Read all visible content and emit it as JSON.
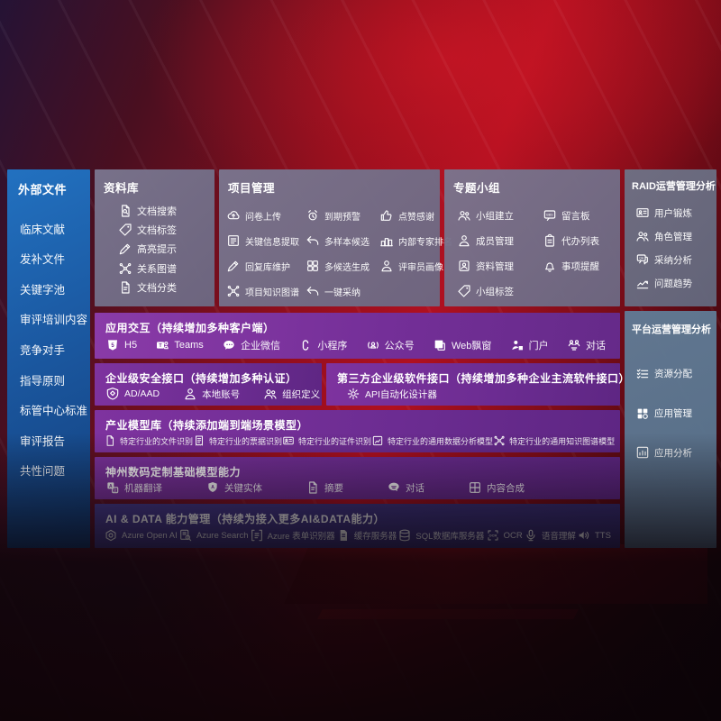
{
  "sidebar": {
    "title": "外部文件",
    "items": [
      {
        "label": "临床文献"
      },
      {
        "label": "发补文件"
      },
      {
        "label": "关键字池"
      },
      {
        "label": "审评培训内容"
      },
      {
        "label": "竞争对手"
      },
      {
        "label": "指导原则"
      },
      {
        "label": "标管中心标准"
      },
      {
        "label": "审评报告"
      },
      {
        "label": "共性问题"
      }
    ]
  },
  "panels": {
    "library": {
      "title": "资料库",
      "items": [
        {
          "label": "文档搜索",
          "icon": "doc-search-icon"
        },
        {
          "label": "文档标签",
          "icon": "doc-tag-icon"
        },
        {
          "label": "高亮提示",
          "icon": "highlight-pen-icon"
        },
        {
          "label": "关系图谱",
          "icon": "relation-graph-icon"
        },
        {
          "label": "文档分类",
          "icon": "doc-category-icon"
        }
      ]
    },
    "project": {
      "title": "项目管理",
      "items": [
        {
          "label": "问卷上传",
          "icon": "upload-cloud-icon"
        },
        {
          "label": "到期预警",
          "icon": "alarm-icon"
        },
        {
          "label": "点赞感谢",
          "icon": "thumbs-up-icon"
        },
        {
          "label": "关键信息提取",
          "icon": "doc-extract-icon"
        },
        {
          "label": "多样本候选",
          "icon": "reply-arrow-icon"
        },
        {
          "label": "内部专家排名",
          "icon": "ranking-icon"
        },
        {
          "label": "回复库维护",
          "icon": "edit-pen-icon"
        },
        {
          "label": "多候选生成",
          "icon": "multi-generate-icon"
        },
        {
          "label": "评审员画像",
          "icon": "reviewer-person-icon"
        },
        {
          "label": "项目知识图谱",
          "icon": "knowledge-graph-icon"
        },
        {
          "label": "一键采纳",
          "icon": "adopt-arrow-icon"
        }
      ]
    },
    "groups": {
      "title": "专题小组",
      "items": [
        {
          "label": "小组建立",
          "icon": "group-people-icon"
        },
        {
          "label": "留言板",
          "icon": "message-board-icon"
        },
        {
          "label": "成员管理",
          "icon": "member-person-icon"
        },
        {
          "label": "代办列表",
          "icon": "todo-clipboard-icon"
        },
        {
          "label": "资料管理",
          "icon": "data-album-icon"
        },
        {
          "label": "事项提醒",
          "icon": "reminder-bell-icon"
        },
        {
          "label": "小组标签",
          "icon": "group-tag-icon"
        }
      ]
    },
    "raid": {
      "title": "RAID运营管理分析",
      "items": [
        {
          "label": "用户锻炼",
          "icon": "user-card-icon"
        },
        {
          "label": "角色管理",
          "icon": "role-people-icon"
        },
        {
          "label": "采纳分析",
          "icon": "adoption-chat-icon"
        },
        {
          "label": "问题趋势",
          "icon": "trend-chart-icon"
        }
      ]
    },
    "platform": {
      "title": "平台运营管理分析",
      "items": [
        {
          "label": "资源分配",
          "icon": "resource-list-icon"
        },
        {
          "label": "应用管理",
          "icon": "app-grid-icon"
        },
        {
          "label": "应用分析",
          "icon": "app-analysis-icon"
        }
      ]
    }
  },
  "rows": {
    "interaction": {
      "title": "应用交互（持续增加多种客户端）",
      "items": [
        {
          "label": "H5",
          "icon": "h5-icon"
        },
        {
          "label": "Teams",
          "icon": "teams-icon"
        },
        {
          "label": "企业微信",
          "icon": "wechat-work-icon"
        },
        {
          "label": "小程序",
          "icon": "miniprogram-icon"
        },
        {
          "label": "公众号",
          "icon": "official-account-icon"
        },
        {
          "label": "Web飘窗",
          "icon": "web-popup-icon"
        },
        {
          "label": "门户",
          "icon": "portal-icon"
        },
        {
          "label": "对话",
          "icon": "dialog-icon"
        }
      ]
    },
    "security": {
      "title": "企业级安全接口（持续增加多种认证）",
      "items": [
        {
          "label": "AD/AAD",
          "icon": "ad-shield-icon"
        },
        {
          "label": "本地账号",
          "icon": "local-account-icon"
        },
        {
          "label": "组织定义",
          "icon": "org-define-icon"
        }
      ]
    },
    "thirdparty": {
      "title": "第三方企业级软件接口（持续增加多种企业主流软件接口）",
      "items": [
        {
          "label": "API自动化设计器",
          "icon": "api-designer-icon"
        }
      ]
    },
    "industry": {
      "title": "产业模型库（持续添加端到端场景模型）",
      "items": [
        {
          "label": "特定行业的文件识别",
          "icon": "file-recognition-icon"
        },
        {
          "label": "特定行业的票据识别",
          "icon": "invoice-recognition-icon"
        },
        {
          "label": "特定行业的证件识别",
          "icon": "certificate-recognition-icon"
        },
        {
          "label": "特定行业的通用数据分析模型",
          "icon": "data-analysis-model-icon"
        },
        {
          "label": "特定行业的通用知识图谱模型",
          "icon": "knowledge-graph-model-icon"
        }
      ]
    },
    "base": {
      "title": "神州数码定制基础模型能力",
      "items": [
        {
          "label": "机器翻译",
          "icon": "translate-icon"
        },
        {
          "label": "关键实体",
          "icon": "key-entity-icon"
        },
        {
          "label": "摘要",
          "icon": "summary-doc-icon"
        },
        {
          "label": "对话",
          "icon": "chat-bubble-icon"
        },
        {
          "label": "内容合成",
          "icon": "content-compose-icon"
        }
      ]
    },
    "aidata": {
      "title": "AI & DATA 能力管理（持续为接入更多AI&DATA能力）",
      "items": [
        {
          "label": "Azure Open AI",
          "icon": "openai-icon"
        },
        {
          "label": "Azure Search",
          "icon": "azure-search-icon"
        },
        {
          "label": "Azure 表单识别器",
          "icon": "form-recognizer-icon"
        },
        {
          "label": "缓存服务器",
          "icon": "cache-server-icon"
        },
        {
          "label": "SQL数据库服务器",
          "icon": "sql-db-icon"
        },
        {
          "label": "OCR",
          "icon": "ocr-icon"
        },
        {
          "label": "语音理解",
          "icon": "speech-icon"
        },
        {
          "label": "TTS",
          "icon": "tts-icon"
        }
      ]
    }
  },
  "colors": {
    "sidebar_blue": "#1b59a2",
    "panel_gray": "#746f88",
    "panel_slate": "#5b7690",
    "row_purple": "#742f98",
    "row_indigo": "#3e3380",
    "background_red": "#a30d1c"
  }
}
